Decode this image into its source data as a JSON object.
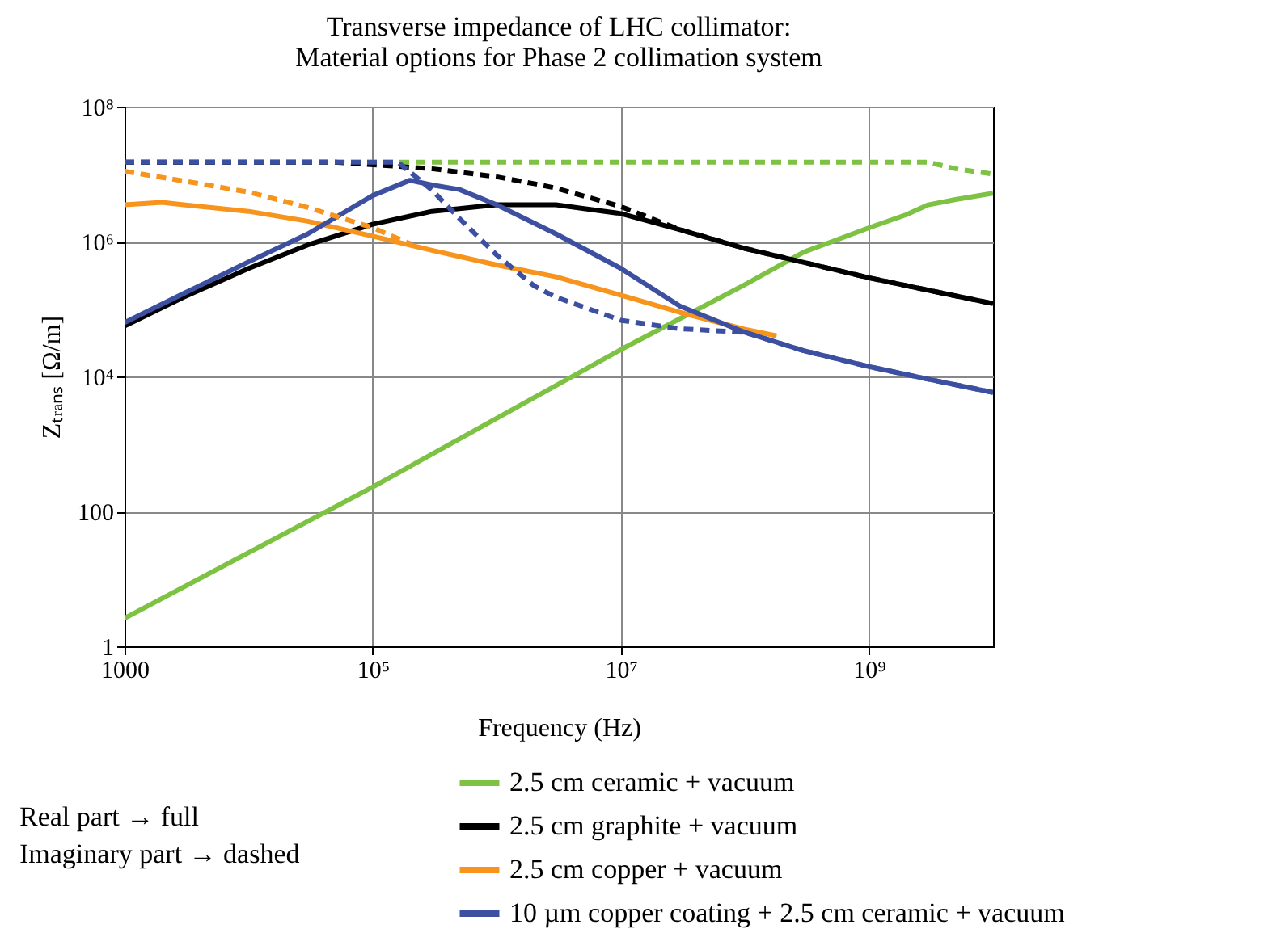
{
  "chart_data": {
    "type": "line",
    "title": "Transverse impedance of LHC collimator:\nMaterial options for Phase 2 collimation system",
    "xlabel": "Frequency (Hz)",
    "ylabel": "Zₜᵣₐₙₛ [Ω/m]",
    "log": "xy",
    "xlim": [
      1000,
      10000000000
    ],
    "ylim": [
      1,
      100000000
    ],
    "xticks": [
      1000,
      {
        "value": 100000,
        "label": "10⁵"
      },
      {
        "value": 10000000,
        "label": "10⁷"
      },
      {
        "value": 1000000000,
        "label": "10⁹"
      }
    ],
    "yticks": [
      1,
      100,
      {
        "value": 10000,
        "label": "10⁴"
      },
      {
        "value": 1000000,
        "label": "10⁶"
      },
      {
        "value": 100000000,
        "label": "10⁸"
      }
    ],
    "grid": true,
    "legend": "bottom",
    "annotations": [
      "Real part → full",
      "Imaginary part → dashed"
    ],
    "series": [
      {
        "name": "2.5 cm ceramic + vacuum",
        "color": "#7dc242",
        "x": [
          1000,
          100000,
          10000000,
          100000000,
          300000000,
          1000000000,
          2000000000,
          3000000000,
          5000000000,
          10000000000
        ],
        "values": [
          2.6,
          230,
          25000,
          230000,
          700000,
          1600000,
          2500000,
          3500000,
          4200000,
          5200000
        ]
      },
      {
        "name": "2.5 cm graphite + vacuum",
        "color": "#000000",
        "x": [
          1000,
          3000,
          10000,
          30000,
          100000,
          300000,
          1000000,
          3000000,
          10000000,
          30000000,
          100000000,
          300000000,
          1000000000,
          3000000000,
          10000000000
        ],
        "values": [
          56000,
          150000,
          400000,
          890000,
          1800000,
          2800000,
          3500000,
          3500000,
          2600000,
          1500000,
          790000,
          490000,
          290000,
          190000,
          120000
        ]
      },
      {
        "name": "2.5 cm copper + vacuum",
        "color": "#f7941d",
        "x": [
          1000,
          2000,
          3000,
          10000,
          30000,
          100000,
          300000,
          1000000,
          3000000,
          10000000,
          30000000,
          100000000,
          180000000
        ],
        "values": [
          3500000,
          3800000,
          3500000,
          2800000,
          2000000,
          1200000,
          740000,
          450000,
          300000,
          160000,
          89000,
          50000,
          40000
        ]
      },
      {
        "name": "10 µm copper coating + 2.5 cm ceramic + vacuum",
        "color": "#3c4fa0",
        "x": [
          1000,
          3000,
          10000,
          30000,
          100000,
          200000,
          300000,
          500000,
          1000000,
          3000000,
          10000000,
          30000000,
          100000000,
          300000000,
          1000000000,
          3000000000,
          10000000000
        ],
        "values": [
          63000,
          170000,
          500000,
          1300000,
          4800000,
          8100000,
          6900000,
          5900000,
          3500000,
          1300000,
          400000,
          110000,
          45000,
          24000,
          14000,
          9100,
          5800
        ]
      },
      {
        "color": "#7dc242",
        "line_style": "dashed",
        "x": [
          1000,
          3000000000,
          5000000000,
          10000000000
        ],
        "values": [
          15000000,
          15000000,
          12000000,
          10000000
        ]
      },
      {
        "color": "#000000",
        "line_style": "dashed",
        "x": [
          1000,
          50000,
          160000,
          300000,
          1000000,
          2000000,
          3000000,
          10000000,
          30000000,
          100000000,
          300000000,
          1000000000,
          3000000000,
          10000000000
        ],
        "values": [
          15000000,
          15000000,
          13000000,
          12000000,
          9100000,
          7200000,
          6200000,
          3300000,
          1500000,
          790000,
          490000,
          290000,
          190000,
          120000
        ]
      },
      {
        "color": "#f7941d",
        "line_style": "dashed",
        "x": [
          1000,
          3000,
          10000,
          30000,
          100000,
          200000
        ],
        "values": [
          11000000,
          7900000,
          5400000,
          3200000,
          1600000,
          930000
        ]
      },
      {
        "color": "#3c4fa0",
        "line_style": "dashed",
        "x": [
          1000,
          100000,
          160000,
          300000,
          500000,
          1000000,
          2000000,
          3000000,
          10000000,
          30000000,
          100000000,
          300000000,
          1000000000,
          3000000000,
          10000000000
        ],
        "values": [
          15000000,
          15000000,
          15000000,
          5800000,
          2200000,
          630000,
          220000,
          150000,
          68000,
          51000,
          45000,
          24000,
          14000,
          9100,
          5800
        ]
      }
    ]
  }
}
